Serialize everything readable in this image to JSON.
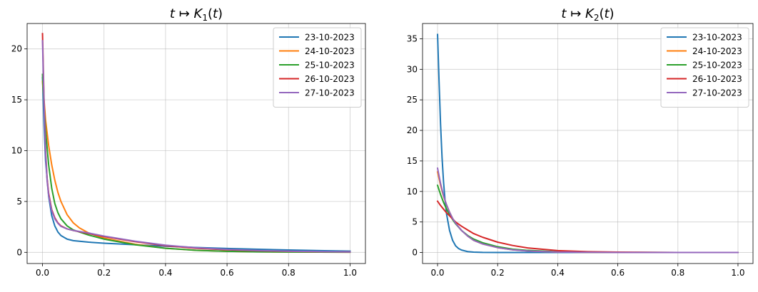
{
  "chart_data": [
    {
      "type": "line",
      "title": "t ↦ K1(t)",
      "title_parts": {
        "pre": "t ↦ ",
        "var": "K",
        "sub": "1",
        "post": "(t)"
      },
      "xlabel": "",
      "ylabel": "",
      "xlim": [
        -0.05,
        1.05
      ],
      "ylim": [
        -1.1,
        22.5
      ],
      "xticks": [
        0.0,
        0.2,
        0.4,
        0.6,
        0.8,
        1.0
      ],
      "xtick_labels": [
        "0.0",
        "0.2",
        "0.4",
        "0.6",
        "0.8",
        "1.0"
      ],
      "yticks": [
        0,
        5,
        10,
        15,
        20
      ],
      "ytick_labels": [
        "0",
        "5",
        "10",
        "15",
        "20"
      ],
      "grid": true,
      "legend_position": "top-right",
      "series": [
        {
          "name": "23-10-2023",
          "color": "#1f77b4",
          "x": [
            0.0,
            0.005,
            0.01,
            0.02,
            0.03,
            0.04,
            0.05,
            0.06,
            0.08,
            0.1,
            0.15,
            0.2,
            0.3,
            0.4,
            0.5,
            0.6,
            0.7,
            0.8,
            0.9,
            1.0
          ],
          "y": [
            17.2,
            12.5,
            9.0,
            5.5,
            3.6,
            2.6,
            2.0,
            1.65,
            1.3,
            1.15,
            1.0,
            0.9,
            0.75,
            0.6,
            0.48,
            0.38,
            0.3,
            0.23,
            0.17,
            0.12
          ]
        },
        {
          "name": "24-10-2023",
          "color": "#ff7f0e",
          "x": [
            0.0,
            0.005,
            0.01,
            0.02,
            0.03,
            0.04,
            0.05,
            0.06,
            0.08,
            0.1,
            0.12,
            0.15,
            0.2,
            0.3,
            0.4,
            0.5,
            0.6,
            0.7,
            0.8,
            0.9,
            1.0
          ],
          "y": [
            16.8,
            15.0,
            13.0,
            10.5,
            8.6,
            7.1,
            5.9,
            5.0,
            3.7,
            2.9,
            2.4,
            1.9,
            1.4,
            0.8,
            0.4,
            0.2,
            0.1,
            0.06,
            0.03,
            0.02,
            0.01
          ]
        },
        {
          "name": "25-10-2023",
          "color": "#2ca02c",
          "x": [
            0.0,
            0.005,
            0.01,
            0.02,
            0.03,
            0.04,
            0.05,
            0.06,
            0.08,
            0.1,
            0.15,
            0.2,
            0.3,
            0.4,
            0.5,
            0.6,
            0.7,
            0.8,
            0.9,
            1.0
          ],
          "y": [
            17.5,
            14.5,
            12.0,
            8.6,
            6.3,
            4.8,
            3.9,
            3.3,
            2.6,
            2.2,
            1.7,
            1.3,
            0.75,
            0.4,
            0.2,
            0.1,
            0.05,
            0.03,
            0.02,
            0.01
          ]
        },
        {
          "name": "26-10-2023",
          "color": "#d62728",
          "x": [
            0.0,
            0.005,
            0.01,
            0.015,
            0.02,
            0.03,
            0.04,
            0.05,
            0.06,
            0.08,
            0.1,
            0.15,
            0.2,
            0.3,
            0.4,
            0.5,
            0.6,
            0.7,
            0.8,
            0.9,
            1.0
          ],
          "y": [
            21.5,
            15.0,
            10.0,
            7.2,
            5.8,
            4.2,
            3.4,
            2.9,
            2.6,
            2.3,
            2.15,
            1.85,
            1.55,
            1.05,
            0.65,
            0.4,
            0.25,
            0.15,
            0.1,
            0.06,
            0.04
          ]
        },
        {
          "name": "27-10-2023",
          "color": "#9467bd",
          "x": [
            0.0,
            0.005,
            0.01,
            0.015,
            0.02,
            0.03,
            0.04,
            0.05,
            0.06,
            0.08,
            0.1,
            0.15,
            0.2,
            0.3,
            0.4,
            0.5,
            0.6,
            0.7,
            0.8,
            0.9,
            1.0
          ],
          "y": [
            20.8,
            14.5,
            9.8,
            7.0,
            5.6,
            4.1,
            3.3,
            2.85,
            2.55,
            2.3,
            2.15,
            1.9,
            1.6,
            1.1,
            0.7,
            0.45,
            0.28,
            0.18,
            0.11,
            0.07,
            0.04
          ]
        }
      ]
    },
    {
      "type": "line",
      "title": "t ↦ K2(t)",
      "title_parts": {
        "pre": "t ↦ ",
        "var": "K",
        "sub": "2",
        "post": "(t)"
      },
      "xlabel": "",
      "ylabel": "",
      "xlim": [
        -0.05,
        1.05
      ],
      "ylim": [
        -1.8,
        37.5
      ],
      "xticks": [
        0.0,
        0.2,
        0.4,
        0.6,
        0.8,
        1.0
      ],
      "xtick_labels": [
        "0.0",
        "0.2",
        "0.4",
        "0.6",
        "0.8",
        "1.0"
      ],
      "yticks": [
        0,
        5,
        10,
        15,
        20,
        25,
        30,
        35
      ],
      "ytick_labels": [
        "0",
        "5",
        "10",
        "15",
        "20",
        "25",
        "30",
        "35"
      ],
      "grid": true,
      "legend_position": "top-right",
      "series": [
        {
          "name": "23-10-2023",
          "color": "#1f77b4",
          "x": [
            0.0,
            0.005,
            0.01,
            0.015,
            0.02,
            0.025,
            0.03,
            0.04,
            0.05,
            0.06,
            0.07,
            0.08,
            0.1,
            0.12,
            0.15,
            0.2,
            0.3,
            0.5,
            1.0
          ],
          "y": [
            35.7,
            28.0,
            21.0,
            15.5,
            11.5,
            8.5,
            6.3,
            3.6,
            2.0,
            1.1,
            0.65,
            0.4,
            0.15,
            0.06,
            0.02,
            0.01,
            0.0,
            0.0,
            0.0
          ]
        },
        {
          "name": "24-10-2023",
          "color": "#ff7f0e",
          "x": [
            0.0,
            0.01,
            0.02,
            0.03,
            0.04,
            0.05,
            0.06,
            0.08,
            0.1,
            0.12,
            0.15,
            0.2,
            0.25,
            0.3,
            0.4,
            0.5,
            0.6,
            0.8,
            1.0
          ],
          "y": [
            13.2,
            11.0,
            9.2,
            7.8,
            6.6,
            5.6,
            4.8,
            3.6,
            2.7,
            2.0,
            1.4,
            0.8,
            0.45,
            0.25,
            0.08,
            0.03,
            0.01,
            0.0,
            0.0
          ]
        },
        {
          "name": "25-10-2023",
          "color": "#2ca02c",
          "x": [
            0.0,
            0.01,
            0.02,
            0.03,
            0.04,
            0.05,
            0.06,
            0.08,
            0.1,
            0.12,
            0.15,
            0.2,
            0.25,
            0.3,
            0.4,
            0.5,
            0.6,
            0.8,
            1.0
          ],
          "y": [
            11.0,
            9.5,
            8.2,
            7.1,
            6.2,
            5.4,
            4.7,
            3.6,
            2.8,
            2.2,
            1.6,
            0.95,
            0.55,
            0.35,
            0.12,
            0.05,
            0.02,
            0.0,
            0.0
          ]
        },
        {
          "name": "26-10-2023",
          "color": "#d62728",
          "x": [
            0.0,
            0.01,
            0.02,
            0.03,
            0.04,
            0.05,
            0.06,
            0.08,
            0.1,
            0.12,
            0.15,
            0.2,
            0.25,
            0.3,
            0.4,
            0.5,
            0.6,
            0.8,
            1.0
          ],
          "y": [
            8.4,
            7.7,
            7.1,
            6.5,
            6.0,
            5.5,
            5.0,
            4.3,
            3.7,
            3.1,
            2.5,
            1.7,
            1.15,
            0.75,
            0.32,
            0.14,
            0.06,
            0.01,
            0.0
          ]
        },
        {
          "name": "27-10-2023",
          "color": "#9467bd",
          "x": [
            0.0,
            0.01,
            0.02,
            0.03,
            0.04,
            0.05,
            0.06,
            0.08,
            0.1,
            0.12,
            0.15,
            0.2,
            0.25,
            0.3,
            0.4,
            0.5,
            0.6,
            0.8,
            1.0
          ],
          "y": [
            13.8,
            11.3,
            9.3,
            7.8,
            6.6,
            5.6,
            4.8,
            3.6,
            2.7,
            2.0,
            1.4,
            0.8,
            0.45,
            0.25,
            0.08,
            0.03,
            0.01,
            0.0,
            0.0
          ]
        }
      ]
    }
  ]
}
